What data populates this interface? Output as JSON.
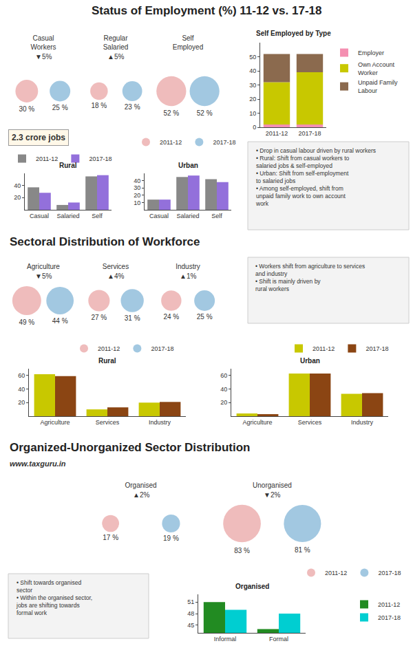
{
  "chart_data": [
    {
      "type": "bubble",
      "title": "Status of Employment (%) 11-12 vs. 17-18",
      "categories": [
        "Casual\nWorkers",
        "Regular\nSalaried",
        "Self\nEmployed"
      ],
      "series": [
        {
          "name": "2011-12",
          "color": "#e8a0a0",
          "values": [
            30,
            18,
            52
          ],
          "value_labels": [
            "30 %",
            "18 %",
            "52 %"
          ]
        },
        {
          "name": "2017-18",
          "color": "#7ab0d4",
          "values": [
            25,
            23,
            52
          ],
          "value_labels": [
            "25 %",
            "23 %",
            "52 %"
          ]
        }
      ],
      "data_labels": true,
      "tick_labels": "x",
      "legend": "lower center",
      "annotations": [
        {
          "text": "▼5%",
          "category": "Casual\nWorkers"
        },
        {
          "text": "▲5%",
          "category": "Regular\nSalaried"
        },
        {
          "text": "2.3 crore jobs"
        },
        {
          "text": "• Drop in casual labour driven by rural workers"
        },
        {
          "text": "• Rural: Shift from casual workers to\nsalaried jobs & self-employed"
        },
        {
          "text": "• Urban: Shift from self-employment\nto salaried jobs"
        },
        {
          "text": "• Among self-employed, shift from\nunpaid family work to own account\nwork"
        }
      ]
    },
    {
      "type": "bar",
      "title": "Self Employed by Type",
      "categories": [
        "2011-12",
        "2017-18"
      ],
      "stacked": true,
      "series": [
        {
          "name": "Employer",
          "color": "#f48fb1",
          "values": [
            2,
            2
          ]
        },
        {
          "name": "Own Account\nWorker",
          "color": "#c8c800",
          "values": [
            30,
            37
          ]
        },
        {
          "name": "Unpaid Family\nLabour",
          "color": "#8b6a4e",
          "values": [
            20,
            13
          ]
        }
      ],
      "ylim": [
        0,
        60
      ],
      "yticks": [
        0,
        10,
        20,
        30,
        40,
        50
      ],
      "grid": false,
      "legend": "upper left"
    },
    {
      "type": "bar",
      "title": "Rural",
      "categories": [
        "Casual",
        "Salaried",
        "Self"
      ],
      "series": [
        {
          "name": "2011-12",
          "color": "#888888",
          "values": [
            37,
            8,
            55
          ]
        },
        {
          "name": "2017-18",
          "color": "#9370db",
          "values": [
            28,
            12,
            57
          ]
        }
      ],
      "ylim": [
        0,
        60
      ],
      "yticks": [
        20,
        40
      ],
      "grid": false,
      "legend": "upper left"
    },
    {
      "type": "bar",
      "title": "Urban",
      "categories": [
        "Casual",
        "Salaried",
        "Self"
      ],
      "series": [
        {
          "name": "2011-12",
          "color": "#888888",
          "values": [
            14,
            45,
            42
          ]
        },
        {
          "name": "2017-18",
          "color": "#9370db",
          "values": [
            14,
            47,
            38
          ]
        }
      ],
      "ylim": [
        0,
        50
      ],
      "yticks": [
        10,
        20,
        30,
        40
      ],
      "grid": false
    },
    {
      "type": "bubble",
      "title": "Sectoral Distribution of Workforce",
      "categories": [
        "Agriculture",
        "Services",
        "Industry"
      ],
      "series": [
        {
          "name": "2011-12",
          "color": "#e8a0a0",
          "values": [
            49,
            27,
            24
          ],
          "value_labels": [
            "49 %",
            "27 %",
            "24 %"
          ]
        },
        {
          "name": "2017-18",
          "color": "#7ab0d4",
          "values": [
            44,
            31,
            25
          ],
          "value_labels": [
            "44 %",
            "31 %",
            "25 %"
          ]
        }
      ],
      "data_labels": true,
      "tick_labels": "x",
      "legend": "lower center",
      "annotations": [
        {
          "text": "▼5%",
          "category": "Agriculture"
        },
        {
          "text": "▲4%",
          "category": "Services"
        },
        {
          "text": "▲1%",
          "category": "Industry"
        },
        {
          "text": "• Workers shift from agriculture to services\nand industry"
        },
        {
          "text": "• Shift is mainly driven by\nrural workers"
        }
      ]
    },
    {
      "type": "bar",
      "title": "Rural",
      "categories": [
        "Agriculture",
        "Services",
        "Industry"
      ],
      "series": [
        {
          "name": "2011-12",
          "color": "#c8c800",
          "values": [
            62,
            10,
            20
          ]
        },
        {
          "name": "2017-18",
          "color": "#8b4513",
          "values": [
            59,
            13,
            21
          ]
        }
      ],
      "ylim": [
        0,
        70
      ],
      "yticks": [
        20,
        40,
        60
      ],
      "grid": false,
      "legend": "upper right"
    },
    {
      "type": "bar",
      "title": "Urban",
      "categories": [
        "Agriculture",
        "Services",
        "Industry"
      ],
      "series": [
        {
          "name": "2011-12",
          "color": "#c8c800",
          "values": [
            4,
            63,
            33
          ]
        },
        {
          "name": "2017-18",
          "color": "#8b4513",
          "values": [
            3,
            63,
            34
          ]
        }
      ],
      "ylim": [
        0,
        70
      ],
      "yticks": [
        20,
        40,
        60
      ],
      "grid": false
    },
    {
      "type": "bubble",
      "title": "Organized-Unorganized Sector Distribution",
      "categories": [
        "Organised",
        "Unorganised"
      ],
      "series": [
        {
          "name": "2011-12",
          "color": "#e8a0a0",
          "values": [
            17,
            83
          ],
          "value_labels": [
            "17 %",
            "83 %"
          ]
        },
        {
          "name": "2017-18",
          "color": "#7ab0d4",
          "values": [
            19,
            81
          ],
          "value_labels": [
            "19 %",
            "81 %"
          ]
        }
      ],
      "data_labels": true,
      "tick_labels": "x",
      "legend": "lower right",
      "annotations": [
        {
          "text": "▲2%",
          "category": "Organised"
        },
        {
          "text": "▼2%",
          "category": "Unorganised"
        },
        {
          "text": "www.taxguru.in"
        },
        {
          "text": "• Shift towards organised\nsector"
        },
        {
          "text": "• Within the organised sector,\njobs are shifting towards\nformal work"
        }
      ]
    },
    {
      "type": "bar",
      "title": "Organised",
      "categories": [
        "Informal",
        "Formal"
      ],
      "series": [
        {
          "name": "2011-12",
          "color": "#228B22",
          "values": [
            51,
            44
          ]
        },
        {
          "name": "2017-18",
          "color": "#00CED1",
          "values": [
            49,
            48
          ]
        }
      ],
      "ylim": [
        43,
        53
      ],
      "yticks": [
        45,
        48,
        51
      ],
      "grid": false,
      "legend": "upper right"
    }
  ]
}
